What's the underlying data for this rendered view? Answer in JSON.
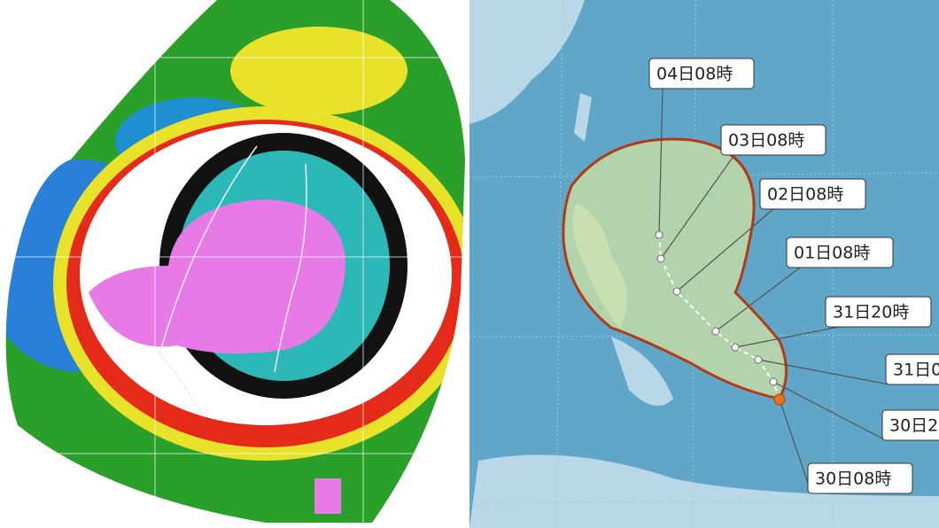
{
  "track_labels": [
    "04日08時",
    "03日08時",
    "02日08時",
    "01日08時",
    "31日20時",
    "31日0",
    "30日2",
    "30日08時"
  ]
}
